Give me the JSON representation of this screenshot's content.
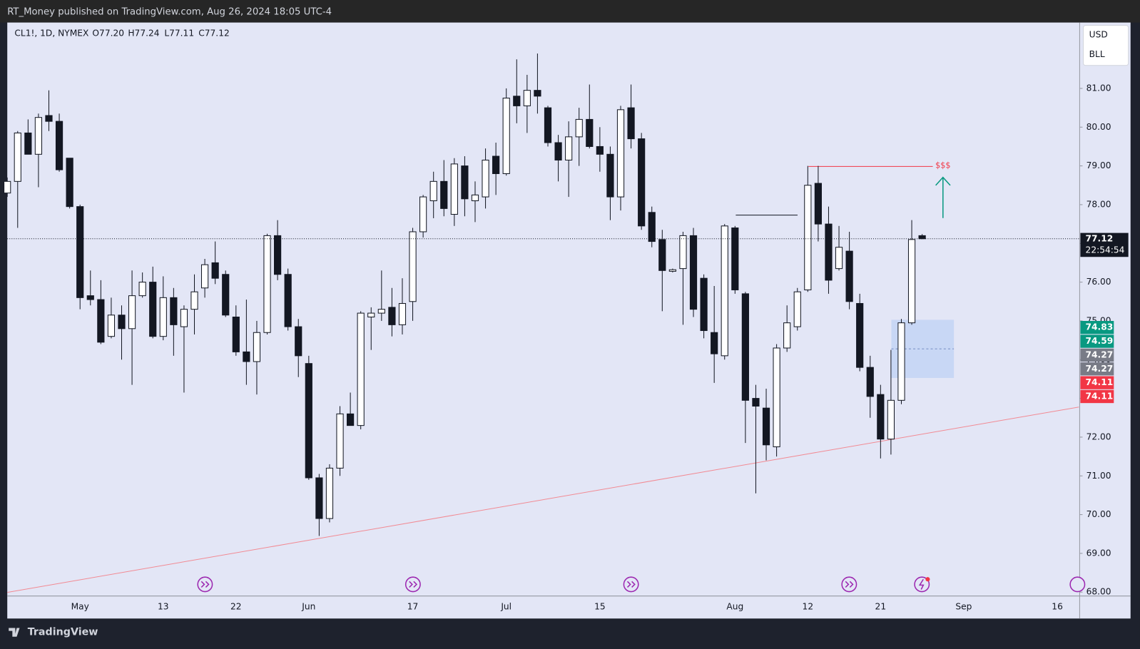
{
  "header": {
    "published": "RT_Money published on TradingView.com, Aug 26, 2024 18:05 UTC-4",
    "symbol": "CL1!, 1D, NYMEX",
    "ohlc": [
      "O77.20",
      "H77.24",
      "L77.11",
      "C77.12"
    ]
  },
  "price_axis": {
    "currency": "USD",
    "unit": "BLL",
    "countdown": "22:54:54"
  },
  "annotations": [
    "$$$"
  ],
  "footer": {
    "brand": "TradingView"
  },
  "chart_data": {
    "type": "candlestick",
    "up_color": "#ffffff",
    "down_color": "#131722",
    "wick_color": "#131722",
    "categories": [
      null,
      null,
      null,
      null,
      null,
      null,
      null,
      "May",
      null,
      null,
      null,
      null,
      null,
      null,
      null,
      "13",
      null,
      null,
      null,
      null,
      null,
      null,
      "22",
      null,
      null,
      null,
      null,
      null,
      null,
      "Jun",
      null,
      null,
      null,
      null,
      null,
      null,
      null,
      null,
      null,
      "17",
      null,
      null,
      null,
      null,
      null,
      null,
      null,
      null,
      "Jul",
      null,
      null,
      null,
      null,
      null,
      null,
      null,
      null,
      "15",
      null,
      null,
      null,
      null,
      null,
      null,
      null,
      null,
      null,
      null,
      null,
      null,
      "Aug",
      null,
      null,
      null,
      null,
      null,
      null,
      "12",
      null,
      null,
      null,
      null,
      null,
      null,
      "21",
      null,
      null,
      null,
      null,
      null,
      null,
      null,
      "Sep",
      null,
      null,
      null,
      null,
      null,
      null,
      null,
      null,
      "16",
      null,
      null
    ],
    "open": [
      78.3,
      78.6,
      79.85,
      79.3,
      80.3,
      80.15,
      79.2,
      77.95,
      75.65,
      75.55,
      74.6,
      75.15,
      74.8,
      75.65,
      76.0,
      74.6,
      75.6,
      74.85,
      75.3,
      75.85,
      76.5,
      76.2,
      75.1,
      74.2,
      73.95,
      74.7,
      77.2,
      76.2,
      74.85,
      73.9,
      70.95,
      69.9,
      71.2,
      72.6,
      72.3,
      75.1,
      75.2,
      75.35,
      74.9,
      75.5,
      77.3,
      78.1,
      78.6,
      77.75,
      79.0,
      78.1,
      78.2,
      79.25,
      78.8,
      80.8,
      80.55,
      80.95,
      80.5,
      79.6,
      79.15,
      79.75,
      80.2,
      79.5,
      79.3,
      78.2,
      80.5,
      79.7,
      77.8,
      77.1,
      76.28,
      76.35,
      77.2,
      76.1,
      74.7,
      74.1,
      77.4,
      75.7,
      73.0,
      72.75,
      71.75,
      74.3,
      74.85,
      75.8,
      78.55,
      77.5,
      76.35,
      76.8,
      75.45,
      73.8,
      73.1,
      71.95,
      72.95,
      74.95,
      77.2,
      null,
      null,
      null,
      null,
      null,
      null,
      null,
      null,
      null,
      null,
      null,
      null,
      null,
      null,
      null
    ],
    "high": [
      78.7,
      79.9,
      80.2,
      80.35,
      80.95,
      80.35,
      79.2,
      78.0,
      76.3,
      76.05,
      75.6,
      75.4,
      76.3,
      76.25,
      76.4,
      76.15,
      75.85,
      75.4,
      76.2,
      76.6,
      77.05,
      76.3,
      75.4,
      75.55,
      75.0,
      77.25,
      77.6,
      76.35,
      75.05,
      74.1,
      71.05,
      71.3,
      72.8,
      73.15,
      75.25,
      75.35,
      76.3,
      75.85,
      76.1,
      77.4,
      78.25,
      78.85,
      79.15,
      79.2,
      79.25,
      78.6,
      79.45,
      79.6,
      81.0,
      81.75,
      81.35,
      81.9,
      80.55,
      79.8,
      80.15,
      80.5,
      81.1,
      80.0,
      79.5,
      80.55,
      81.1,
      79.85,
      77.95,
      77.35,
      76.35,
      77.3,
      77.4,
      76.2,
      75.9,
      77.5,
      77.45,
      75.75,
      73.35,
      73.25,
      74.4,
      75.4,
      75.85,
      79.0,
      79.0,
      77.95,
      77.45,
      77.3,
      75.7,
      74.1,
      73.35,
      74.25,
      75.05,
      77.6,
      77.24,
      null,
      null,
      null,
      null,
      null,
      null,
      null,
      null,
      null,
      null,
      null,
      null,
      null,
      null,
      null
    ],
    "low": [
      78.2,
      77.4,
      79.3,
      78.45,
      79.9,
      78.85,
      77.9,
      75.3,
      75.4,
      74.4,
      74.55,
      74.0,
      73.35,
      75.6,
      74.55,
      74.5,
      74.1,
      73.15,
      74.65,
      75.6,
      75.95,
      75.1,
      74.1,
      73.35,
      73.1,
      74.65,
      76.05,
      74.75,
      73.55,
      70.9,
      69.45,
      69.8,
      71.0,
      72.3,
      72.2,
      74.25,
      75.0,
      74.6,
      74.65,
      75.0,
      77.15,
      77.65,
      77.7,
      77.45,
      77.7,
      77.55,
      77.9,
      78.25,
      78.75,
      80.1,
      79.85,
      80.35,
      79.5,
      78.6,
      78.2,
      79.0,
      79.45,
      78.85,
      77.6,
      77.85,
      79.45,
      77.35,
      76.9,
      75.25,
      76.25,
      74.9,
      75.1,
      74.55,
      73.4,
      74.0,
      75.7,
      71.85,
      70.55,
      71.4,
      71.5,
      74.2,
      74.75,
      75.75,
      77.05,
      75.7,
      76.3,
      75.3,
      73.7,
      72.5,
      71.45,
      71.55,
      72.85,
      74.9,
      77.11,
      null,
      null,
      null,
      null,
      null,
      null,
      null,
      null,
      null,
      null,
      null,
      null,
      null,
      null,
      null
    ],
    "close": [
      78.6,
      79.85,
      79.3,
      80.25,
      80.15,
      78.9,
      77.95,
      75.6,
      75.55,
      74.45,
      75.15,
      74.8,
      75.65,
      76.0,
      74.6,
      75.6,
      74.9,
      75.3,
      75.75,
      76.45,
      76.1,
      75.15,
      74.2,
      73.95,
      74.7,
      77.2,
      76.2,
      74.85,
      74.1,
      70.95,
      69.9,
      71.2,
      72.6,
      72.3,
      75.2,
      75.2,
      75.3,
      74.9,
      75.45,
      77.3,
      78.2,
      78.6,
      77.9,
      79.05,
      78.15,
      78.25,
      79.15,
      78.8,
      80.75,
      80.55,
      80.95,
      80.8,
      79.6,
      79.15,
      79.75,
      80.2,
      79.5,
      79.3,
      78.2,
      80.45,
      79.7,
      77.45,
      77.05,
      76.3,
      76.32,
      77.2,
      75.3,
      74.75,
      74.15,
      77.45,
      75.8,
      72.95,
      72.8,
      71.8,
      74.3,
      74.95,
      75.75,
      78.5,
      77.5,
      76.05,
      76.9,
      75.5,
      73.8,
      73.05,
      71.95,
      72.95,
      74.95,
      77.1,
      77.12,
      null,
      null,
      null,
      null,
      null,
      null,
      null,
      null,
      null,
      null,
      null,
      null,
      null,
      null,
      null
    ],
    "ylim": [
      67.9,
      82.7
    ],
    "yticks": [
      {
        "value": 68,
        "label": "68.00"
      },
      {
        "value": 69,
        "label": "69.00"
      },
      {
        "value": 70,
        "label": "70.00"
      },
      {
        "value": 71,
        "label": "71.00"
      },
      {
        "value": 72,
        "label": "72.00"
      },
      {
        "value": 73,
        "label": "73.00"
      },
      {
        "value": 74,
        "label": "74.00"
      },
      {
        "value": 75,
        "label": "75.00"
      },
      {
        "value": 76,
        "label": "76.00"
      },
      {
        "value": 77,
        "label": "77.00"
      },
      {
        "value": 78,
        "label": "78.00"
      },
      {
        "value": 79,
        "label": "79.00"
      },
      {
        "value": 80,
        "label": "80.00"
      },
      {
        "value": 81,
        "label": "81.00"
      }
    ],
    "grid": false,
    "last_price_color": "#131722",
    "price_tags": {
      "values": [
        74.83,
        74.59,
        74.27,
        74.27,
        74.11,
        74.11
      ],
      "colors": [
        "#089981",
        "#089981",
        "#787b86",
        "#787b86",
        "#f23645",
        "#f23645"
      ]
    }
  }
}
